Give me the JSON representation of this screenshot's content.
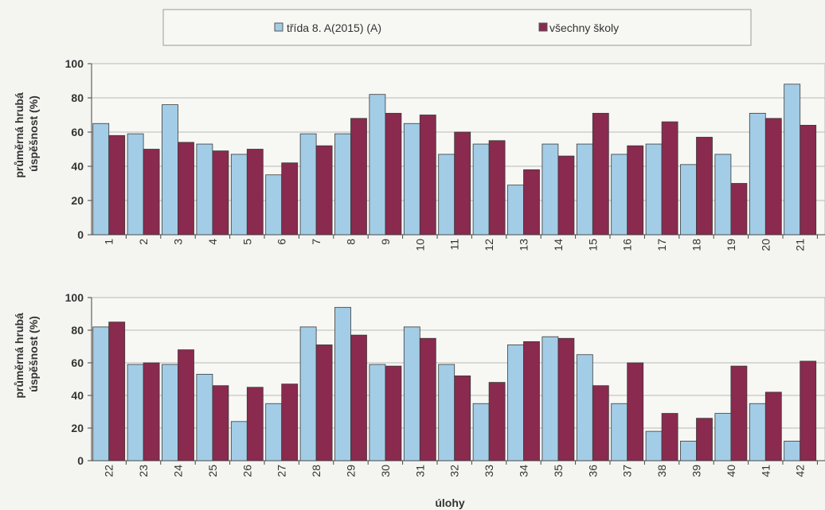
{
  "chart_data": [
    {
      "type": "bar",
      "title": "",
      "ylabel": "průměrná hrubá úspěšnost (%)",
      "xlabel": "",
      "ylim": [
        0,
        100
      ],
      "yticks": [
        0,
        20,
        40,
        60,
        80,
        100
      ],
      "categories": [
        "1",
        "2",
        "3",
        "4",
        "5",
        "6",
        "7",
        "8",
        "9",
        "10",
        "11",
        "12",
        "13",
        "14",
        "15",
        "16",
        "17",
        "18",
        "19",
        "20",
        "21"
      ],
      "series": [
        {
          "name": "třída 8. A(2015) (A)",
          "values": [
            65,
            59,
            76,
            53,
            47,
            35,
            59,
            59,
            82,
            65,
            47,
            53,
            29,
            53,
            53,
            47,
            53,
            41,
            47,
            71,
            88
          ]
        },
        {
          "name": "všechny školy",
          "values": [
            58,
            50,
            54,
            49,
            50,
            42,
            52,
            68,
            71,
            70,
            60,
            55,
            38,
            46,
            71,
            52,
            66,
            57,
            30,
            68,
            64
          ]
        }
      ],
      "legend": "top"
    },
    {
      "type": "bar",
      "title": "",
      "ylabel": "průměrná hrubá úspěšnost (%)",
      "xlabel": "úlohy",
      "ylim": [
        0,
        100
      ],
      "yticks": [
        0,
        20,
        40,
        60,
        80,
        100
      ],
      "categories": [
        "22",
        "23",
        "24",
        "25",
        "26",
        "27",
        "28",
        "29",
        "30",
        "31",
        "32",
        "33",
        "34",
        "35",
        "36",
        "37",
        "38",
        "39",
        "40",
        "41",
        "42"
      ],
      "series": [
        {
          "name": "třída 8. A(2015) (A)",
          "values": [
            82,
            59,
            59,
            53,
            24,
            35,
            82,
            94,
            59,
            82,
            59,
            35,
            71,
            76,
            65,
            35,
            18,
            12,
            29,
            35,
            12
          ]
        },
        {
          "name": "všechny školy",
          "values": [
            85,
            60,
            68,
            46,
            45,
            47,
            71,
            77,
            58,
            75,
            52,
            48,
            73,
            75,
            46,
            60,
            29,
            26,
            58,
            42,
            61
          ]
        }
      ]
    }
  ],
  "colors": {
    "class": "#a3cde6",
    "all": "#8a2a4e",
    "background": "#f4f4f1"
  }
}
